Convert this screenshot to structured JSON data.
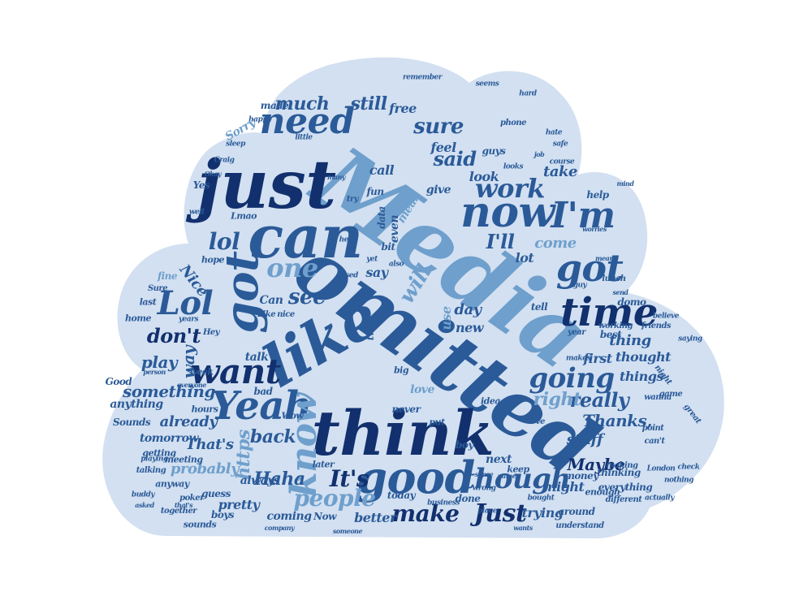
{
  "palette": {
    "dark": "#12306e",
    "mid": "#2b5a98",
    "light": "#6f9fcc",
    "pale": "#a9c6e6",
    "cloud_fill": "#d2e0f1",
    "background": "#ffffff"
  },
  "words": [
    {
      "id": "media",
      "text": "Media"
    },
    {
      "id": "omitted",
      "text": "omitted"
    },
    {
      "id": "just",
      "text": "just"
    },
    {
      "id": "can",
      "text": "can"
    },
    {
      "id": "think",
      "text": "think"
    },
    {
      "id": "like",
      "text": "like"
    },
    {
      "id": "good",
      "text": "good"
    },
    {
      "id": "now",
      "text": "now"
    },
    {
      "id": "time",
      "text": "time"
    },
    {
      "id": "got-1",
      "text": "got"
    },
    {
      "id": "got-2",
      "text": "got"
    },
    {
      "id": "need",
      "text": "need"
    },
    {
      "id": "im",
      "text": "I'm"
    },
    {
      "id": "yeah",
      "text": "Yeah"
    },
    {
      "id": "want",
      "text": "want"
    },
    {
      "id": "know",
      "text": "know"
    },
    {
      "id": "lol-1",
      "text": "Lol"
    },
    {
      "id": "lol-2",
      "text": "lol"
    },
    {
      "id": "one",
      "text": "one"
    },
    {
      "id": "work",
      "text": "work"
    },
    {
      "id": "though",
      "text": "though"
    },
    {
      "id": "going",
      "text": "going"
    },
    {
      "id": "people",
      "text": "people"
    },
    {
      "id": "make",
      "text": "make"
    },
    {
      "id": "just-2",
      "text": "Just"
    },
    {
      "id": "its",
      "text": "It's"
    },
    {
      "id": "sure",
      "text": "sure"
    },
    {
      "id": "much",
      "text": "much"
    },
    {
      "id": "still",
      "text": "still"
    },
    {
      "id": "said",
      "text": "said"
    },
    {
      "id": "see",
      "text": "see"
    },
    {
      "id": "dont",
      "text": "don't"
    },
    {
      "id": "ill",
      "text": "I'll"
    },
    {
      "id": "really",
      "text": "really"
    },
    {
      "id": "right",
      "text": "right"
    },
    {
      "id": "maybe",
      "text": "Maybe"
    },
    {
      "id": "thanks",
      "text": "Thanks,"
    },
    {
      "id": "haha",
      "text": "Haha"
    },
    {
      "id": "back",
      "text": "back"
    },
    {
      "id": "something",
      "text": "something"
    },
    {
      "id": "already",
      "text": "already"
    },
    {
      "id": "thats",
      "text": "That's"
    },
    {
      "id": "probably",
      "text": "probably"
    },
    {
      "id": "https",
      "text": "https"
    },
    {
      "id": "will",
      "text": "will"
    },
    {
      "id": "play",
      "text": "play"
    },
    {
      "id": "way",
      "text": "way"
    },
    {
      "id": "thing",
      "text": "thing"
    },
    {
      "id": "thought",
      "text": "thought"
    },
    {
      "id": "come",
      "text": "come"
    },
    {
      "id": "lot",
      "text": "lot"
    },
    {
      "id": "day",
      "text": "day"
    },
    {
      "id": "use",
      "text": "use"
    },
    {
      "id": "new",
      "text": "new"
    },
    {
      "id": "nice",
      "text": "Nice"
    },
    {
      "id": "free",
      "text": "free"
    },
    {
      "id": "call",
      "text": "call"
    },
    {
      "id": "feel",
      "text": "feel"
    },
    {
      "id": "look",
      "text": "look"
    },
    {
      "id": "take",
      "text": "take"
    },
    {
      "id": "even",
      "text": "even"
    },
    {
      "id": "mean",
      "text": "mean"
    },
    {
      "id": "give",
      "text": "give"
    },
    {
      "id": "say",
      "text": "say"
    },
    {
      "id": "stuff",
      "text": "stuff"
    },
    {
      "id": "might",
      "text": "might"
    },
    {
      "id": "trying",
      "text": "trying"
    },
    {
      "id": "better",
      "text": "better"
    },
    {
      "id": "coming",
      "text": "coming"
    },
    {
      "id": "pretty",
      "text": "pretty"
    },
    {
      "id": "always",
      "text": "always"
    },
    {
      "id": "next",
      "text": "next"
    },
    {
      "id": "love",
      "text": "love"
    },
    {
      "id": "things",
      "text": "things"
    },
    {
      "id": "first",
      "text": "first"
    },
    {
      "id": "tomorrow",
      "text": "tomorrow"
    },
    {
      "id": "anything",
      "text": "anything"
    },
    {
      "id": "talk",
      "text": "talk"
    },
    {
      "id": "made",
      "text": "made"
    },
    {
      "id": "sorry",
      "text": "Sorry"
    },
    {
      "id": "can2",
      "text": "Can"
    },
    {
      "id": "fun",
      "text": "fun"
    },
    {
      "id": "data",
      "text": "data"
    },
    {
      "id": "bit",
      "text": "bit"
    },
    {
      "id": "help",
      "text": "help"
    },
    {
      "id": "best",
      "text": "best"
    },
    {
      "id": "two",
      "text": "two"
    },
    {
      "id": "never",
      "text": "never"
    },
    {
      "id": "today",
      "text": "today"
    },
    {
      "id": "guess",
      "text": "guess"
    },
    {
      "id": "done",
      "text": "done"
    },
    {
      "id": "boys",
      "text": "boys"
    },
    {
      "id": "around",
      "text": "around"
    },
    {
      "id": "everything",
      "text": "everything"
    },
    {
      "id": "money",
      "text": "money"
    },
    {
      "id": "thinking",
      "text": "thinking"
    },
    {
      "id": "keep",
      "text": "keep"
    },
    {
      "id": "enough",
      "text": "enough"
    },
    {
      "id": "sounds",
      "text": "Sounds"
    },
    {
      "id": "good-2",
      "text": "Good"
    },
    {
      "id": "week",
      "text": "week"
    },
    {
      "id": "home",
      "text": "home"
    },
    {
      "id": "fine",
      "text": "fine"
    },
    {
      "id": "last",
      "text": "last"
    },
    {
      "id": "hope",
      "text": "hope"
    },
    {
      "id": "yes",
      "text": "Yes"
    },
    {
      "id": "lmao",
      "text": "Lmao"
    },
    {
      "id": "domo",
      "text": "domo"
    },
    {
      "id": "tell",
      "text": "tell"
    },
    {
      "id": "year",
      "text": "year"
    },
    {
      "id": "boy",
      "text": "boy"
    },
    {
      "id": "idea",
      "text": "idea"
    },
    {
      "id": "bad",
      "text": "bad"
    },
    {
      "id": "put",
      "text": "put"
    },
    {
      "id": "big",
      "text": "big"
    },
    {
      "id": "later",
      "text": "later"
    },
    {
      "id": "wow",
      "text": "Wow"
    },
    {
      "id": "hours",
      "text": "hours"
    },
    {
      "id": "getting",
      "text": "getting"
    },
    {
      "id": "meeting",
      "text": "meeting"
    },
    {
      "id": "anyway",
      "text": "anyway"
    },
    {
      "id": "talking",
      "text": "talking"
    },
    {
      "id": "playing",
      "text": "playing"
    },
    {
      "id": "now2",
      "text": "Now"
    },
    {
      "id": "sounds2",
      "text": "sounds"
    },
    {
      "id": "together",
      "text": "together"
    },
    {
      "id": "poker",
      "text": "poker"
    },
    {
      "id": "different",
      "text": "different"
    },
    {
      "id": "understand",
      "text": "understand"
    },
    {
      "id": "making",
      "text": "making"
    },
    {
      "id": "working",
      "text": "working"
    },
    {
      "id": "friends",
      "text": "friends"
    },
    {
      "id": "point",
      "text": "point"
    },
    {
      "id": "london",
      "text": "London"
    },
    {
      "id": "game",
      "text": "game"
    },
    {
      "id": "great",
      "text": "great"
    },
    {
      "id": "night",
      "text": "night"
    },
    {
      "id": "wanna",
      "text": "wanna"
    },
    {
      "id": "makes",
      "text": "makes"
    },
    {
      "id": "lunch",
      "text": "lunch"
    },
    {
      "id": "cant",
      "text": "can't"
    },
    {
      "id": "ive",
      "text": "I've"
    },
    {
      "id": "place",
      "text": "place"
    },
    {
      "id": "business",
      "text": "business"
    },
    {
      "id": "wrong",
      "text": "wrong"
    },
    {
      "id": "phone",
      "text": "phone"
    },
    {
      "id": "safe",
      "text": "safe"
    },
    {
      "id": "hate",
      "text": "hate"
    },
    {
      "id": "seems",
      "text": "seems"
    },
    {
      "id": "hard",
      "text": "hard"
    },
    {
      "id": "happy",
      "text": "happy"
    },
    {
      "id": "guys",
      "text": "guys"
    },
    {
      "id": "craig",
      "text": "Craig"
    },
    {
      "id": "sleep",
      "text": "sleep"
    },
    {
      "id": "little",
      "text": "little"
    },
    {
      "id": "remember",
      "text": "remember"
    },
    {
      "id": "used",
      "text": "used"
    },
    {
      "id": "hear",
      "text": "hear"
    },
    {
      "id": "also",
      "text": "also"
    },
    {
      "id": "yet",
      "text": "yet"
    },
    {
      "id": "try",
      "text": "try"
    },
    {
      "id": "well",
      "text": "well"
    },
    {
      "id": "course",
      "text": "course"
    },
    {
      "id": "looks",
      "text": "looks"
    },
    {
      "id": "guy",
      "text": "guy"
    },
    {
      "id": "hey",
      "text": "Hey"
    },
    {
      "id": "like2",
      "text": "Like"
    },
    {
      "id": "nice2",
      "text": "nice"
    },
    {
      "id": "sure2",
      "text": "Sure"
    },
    {
      "id": "years",
      "text": "years"
    },
    {
      "id": "believe",
      "text": "believe"
    },
    {
      "id": "saying",
      "text": "saying"
    },
    {
      "id": "actually",
      "text": "actually"
    },
    {
      "id": "check",
      "text": "check"
    },
    {
      "id": "nothing",
      "text": "nothing"
    },
    {
      "id": "sense",
      "text": "sense"
    },
    {
      "id": "name",
      "text": "name"
    },
    {
      "id": "buddy",
      "text": "buddy"
    },
    {
      "id": "bought",
      "text": "bought"
    },
    {
      "id": "life",
      "text": "life"
    },
    {
      "id": "everyone",
      "text": "everyone"
    },
    {
      "id": "thats2",
      "text": "that's"
    },
    {
      "id": "asked",
      "text": "asked"
    },
    {
      "id": "company",
      "text": "company"
    },
    {
      "id": "someone",
      "text": "someone"
    },
    {
      "id": "wants",
      "text": "wants"
    },
    {
      "id": "send",
      "text": "send"
    },
    {
      "id": "worries",
      "text": "worries"
    },
    {
      "id": "job",
      "text": "job"
    },
    {
      "id": "meant",
      "text": "meant"
    },
    {
      "id": "mind",
      "text": "mind"
    },
    {
      "id": "okay",
      "text": "Okay"
    },
    {
      "id": "many",
      "text": "many"
    },
    {
      "id": "person",
      "text": "person"
    }
  ]
}
